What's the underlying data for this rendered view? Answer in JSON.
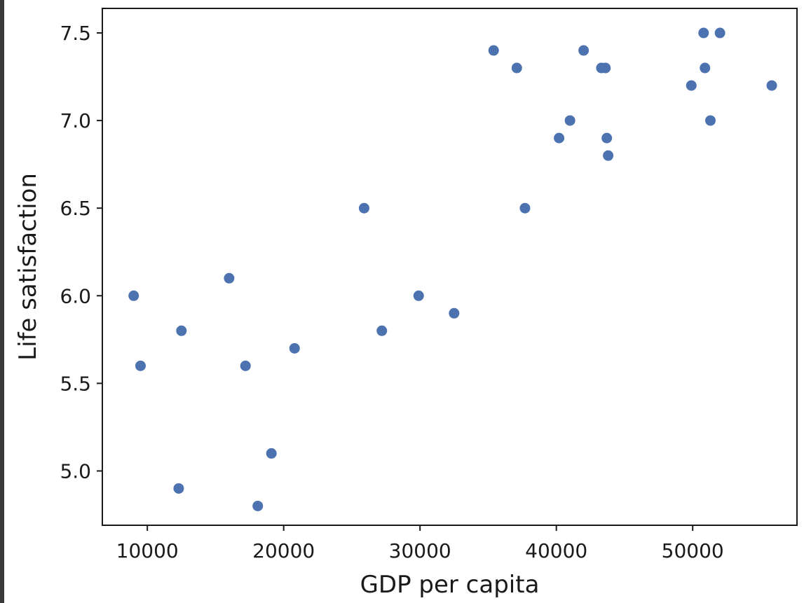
{
  "chart_data": {
    "type": "scatter",
    "title": "",
    "xlabel": "GDP per capita",
    "ylabel": "Life satisfaction",
    "xlim": [
      6700,
      57650
    ],
    "ylim": [
      4.69,
      7.64
    ],
    "xticks": [
      10000,
      20000,
      30000,
      40000,
      50000
    ],
    "yticks": [
      5.0,
      5.5,
      6.0,
      6.5,
      7.0,
      7.5
    ],
    "xtick_labels": [
      "10000",
      "20000",
      "30000",
      "40000",
      "50000"
    ],
    "ytick_labels": [
      "5.0",
      "5.5",
      "6.0",
      "6.5",
      "7.0",
      "7.5"
    ],
    "grid": false,
    "legend": "none",
    "point_color": "#4C72B0",
    "x": [
      9000,
      9500,
      12300,
      12500,
      16000,
      17200,
      18100,
      19100,
      20800,
      25900,
      27200,
      29900,
      32500,
      35400,
      37100,
      37700,
      40200,
      41000,
      42000,
      43300,
      43600,
      43700,
      43800,
      49900,
      50800,
      50900,
      51300,
      52000,
      55800
    ],
    "y": [
      6.0,
      5.6,
      4.9,
      5.8,
      6.1,
      5.6,
      4.8,
      5.1,
      5.7,
      6.5,
      5.8,
      6.0,
      5.9,
      7.4,
      7.3,
      6.5,
      6.9,
      7.0,
      7.4,
      7.3,
      7.3,
      6.9,
      6.8,
      7.2,
      7.5,
      7.3,
      7.0,
      7.5,
      7.2
    ]
  }
}
